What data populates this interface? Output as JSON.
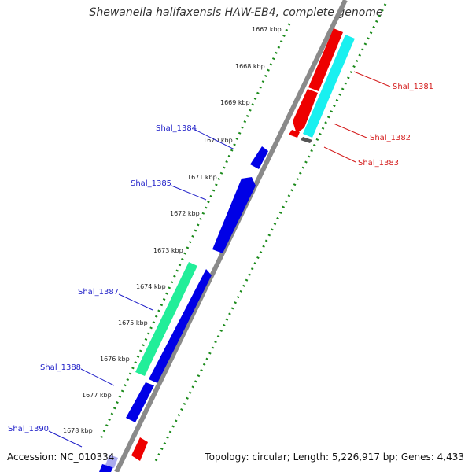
{
  "title": "Shewanella halifaxensis HAW-EB4, complete genome",
  "footer": {
    "accession": "Accession: NC_010334",
    "summary": "Topology: circular; Length: 5,226,917 bp; Genes: 4,433"
  },
  "ticks": [
    "1667 kbp",
    "1668 kbp",
    "1669 kbp",
    "1670 kbp",
    "1671 kbp",
    "1672 kbp",
    "1673 kbp",
    "1674 kbp",
    "1675 kbp",
    "1676 kbp",
    "1677 kbp",
    "1678 kbp"
  ],
  "gene_labels": [
    {
      "id": "Shal_1381",
      "strand": "reverse"
    },
    {
      "id": "Shal_1382",
      "strand": "reverse"
    },
    {
      "id": "Shal_1383",
      "strand": "reverse"
    },
    {
      "id": "Shal_1384",
      "strand": "forward"
    },
    {
      "id": "Shal_1385",
      "strand": "forward"
    },
    {
      "id": "Shal_1387",
      "strand": "forward"
    },
    {
      "id": "Shal_1388",
      "strand": "forward"
    },
    {
      "id": "Shal_1390",
      "strand": "forward"
    }
  ],
  "colors": {
    "forward_label": "#1f1fc8",
    "reverse_label": "#d41c1c",
    "forward_gene": "#0000e6",
    "reverse_gene": "#ee0000",
    "cyan_gene": "#19f0f0",
    "green_gene": "#22ee99",
    "backbone": "#888888",
    "dots": "#1a8a1a"
  }
}
